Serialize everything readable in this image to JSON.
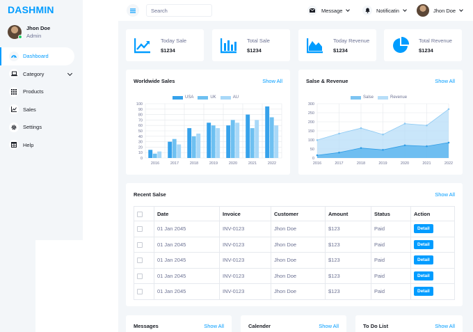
{
  "brand": "DASHMIN",
  "user": {
    "name": "Jhon Doe",
    "role": "Admin"
  },
  "nav": [
    {
      "label": "Dashboard",
      "icon": "dashboard-icon"
    },
    {
      "label": "Category",
      "icon": "laptop-icon"
    },
    {
      "label": "Products",
      "icon": "grid-icon"
    },
    {
      "label": "Sales",
      "icon": "chart-icon"
    },
    {
      "label": "Settings",
      "icon": "gear-icon"
    },
    {
      "label": "Help",
      "icon": "table-icon"
    }
  ],
  "topbar": {
    "search_placeholder": "Search",
    "message": "Message",
    "notification": "Notificatin",
    "user": "Jhon Doe"
  },
  "stats": [
    {
      "label": "Today Sale",
      "value": "$1234",
      "icon": "line-chart-icon"
    },
    {
      "label": "Total Sale",
      "value": "$1234",
      "icon": "bar-chart-icon"
    },
    {
      "label": "Today Revenue",
      "value": "$1234",
      "icon": "area-chart-icon"
    },
    {
      "label": "Total Revenue",
      "value": "$1234",
      "icon": "pie-chart-icon"
    }
  ],
  "colors": {
    "accent": "#009cff",
    "series1": "#36a2eb",
    "series2": "#6ec0f1",
    "series3": "#a8d8f8"
  },
  "chart_data": [
    {
      "type": "bar",
      "title": "Worldwide Sales",
      "link": "Show All",
      "categories": [
        "2016",
        "2017",
        "2018",
        "2019",
        "2020",
        "2021",
        "2022"
      ],
      "series": [
        {
          "name": "USA",
          "values": [
            15,
            30,
            55,
            65,
            60,
            80,
            95
          ]
        },
        {
          "name": "UK",
          "values": [
            8,
            35,
            40,
            60,
            70,
            55,
            75
          ]
        },
        {
          "name": "AU",
          "values": [
            12,
            25,
            45,
            55,
            65,
            70,
            60
          ]
        }
      ],
      "ylim": [
        0,
        100
      ],
      "yticks": [
        0,
        10,
        20,
        30,
        40,
        50,
        60,
        70,
        80,
        90,
        100
      ],
      "grid": true,
      "legend": "top-center"
    },
    {
      "type": "area",
      "title": "Salse & Revenue",
      "link": "Show All",
      "categories": [
        "2016",
        "2017",
        "2018",
        "2019",
        "2020",
        "2021",
        "2022"
      ],
      "series": [
        {
          "name": "Salse",
          "values": [
            15,
            30,
            55,
            45,
            70,
            65,
            85
          ]
        },
        {
          "name": "Revenue",
          "values": [
            99,
            135,
            165,
            130,
            190,
            180,
            270
          ]
        }
      ],
      "ylim": [
        0,
        300
      ],
      "yticks": [
        0,
        50,
        100,
        150,
        200,
        250,
        300
      ],
      "grid": true,
      "legend": "top-center"
    }
  ],
  "recent": {
    "title": "Recent Salse",
    "link": "Show All",
    "columns": [
      "Date",
      "Invoice",
      "Customer",
      "Amount",
      "Status",
      "Action"
    ],
    "rows": [
      {
        "date": "01 Jan 2045",
        "invoice": "INV-0123",
        "customer": "Jhon Doe",
        "amount": "$123",
        "status": "Paid",
        "action": "Detail"
      },
      {
        "date": "01 Jan 2045",
        "invoice": "INV-0123",
        "customer": "Jhon Doe",
        "amount": "$123",
        "status": "Paid",
        "action": "Detail"
      },
      {
        "date": "01 Jan 2045",
        "invoice": "INV-0123",
        "customer": "Jhon Doe",
        "amount": "$123",
        "status": "Paid",
        "action": "Detail"
      },
      {
        "date": "01 Jan 2045",
        "invoice": "INV-0123",
        "customer": "Jhon Doe",
        "amount": "$123",
        "status": "Paid",
        "action": "Detail"
      },
      {
        "date": "01 Jan 2045",
        "invoice": "INV-0123",
        "customer": "Jhon Doe",
        "amount": "$123",
        "status": "Paid",
        "action": "Detail"
      }
    ]
  },
  "bottom": [
    {
      "title": "Messages",
      "link": "Show All"
    },
    {
      "title": "Calender",
      "link": "Show All"
    },
    {
      "title": "To Do List",
      "link": "Show All"
    }
  ]
}
